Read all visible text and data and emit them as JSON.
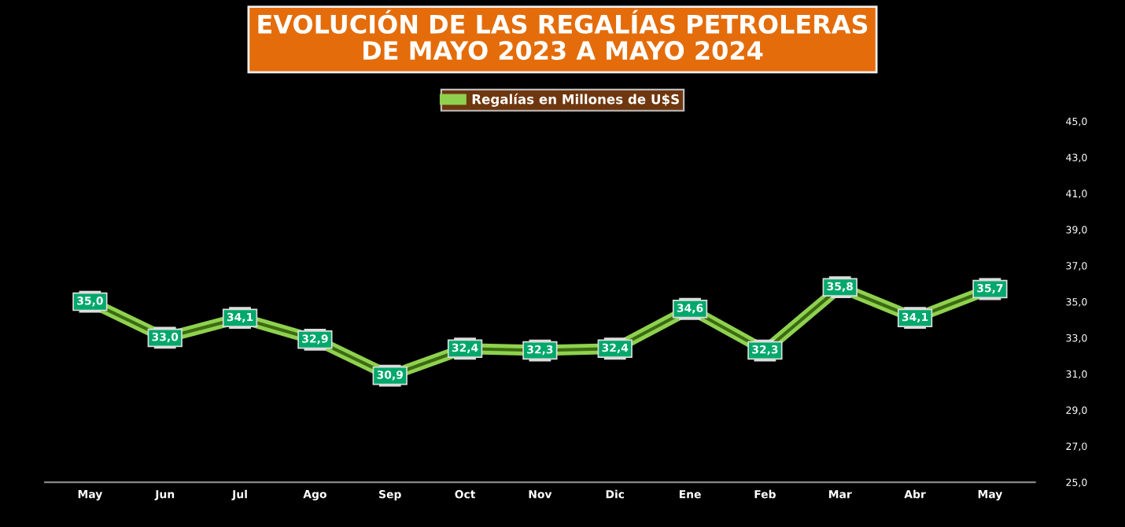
{
  "chart_data": {
    "type": "line",
    "title": "EVOLUCIÓN DE LAS REGALÍAS PETROLERAS\nDE MAYO 2023 A MAYO 2024",
    "categories": [
      "May",
      "Jun",
      "Jul",
      "Ago",
      "Sep",
      "Oct",
      "Nov",
      "Dic",
      "Ene",
      "Feb",
      "Mar",
      "Abr",
      "May"
    ],
    "series": [
      {
        "name": "Regalías en Millones de U$S",
        "color": "#8fd14f",
        "values": [
          35.0,
          33.0,
          34.1,
          32.9,
          30.9,
          32.4,
          32.3,
          32.4,
          34.6,
          32.3,
          35.8,
          34.1,
          35.7
        ],
        "value_labels": [
          "35,0",
          "33,0",
          "34,1",
          "32,9",
          "30,9",
          "32,4",
          "32,3",
          "32,4",
          "34,6",
          "32,3",
          "35,8",
          "34,1",
          "35,7"
        ]
      }
    ],
    "ylim": [
      25,
      45
    ],
    "yticks": [
      {
        "value": 25,
        "label": "25,0"
      },
      {
        "value": 27,
        "label": "27,0"
      },
      {
        "value": 29,
        "label": "29,0"
      },
      {
        "value": 31,
        "label": "31,0"
      },
      {
        "value": 33,
        "label": "33,0"
      },
      {
        "value": 35,
        "label": "35,0"
      },
      {
        "value": 37,
        "label": "37,0"
      },
      {
        "value": 39,
        "label": "39,0"
      },
      {
        "value": 41,
        "label": "41,0"
      },
      {
        "value": 43,
        "label": "43,0"
      },
      {
        "value": 45,
        "label": "45,0"
      }
    ],
    "legend": "top",
    "grid": false,
    "marker": "square",
    "line_style": "solid"
  }
}
